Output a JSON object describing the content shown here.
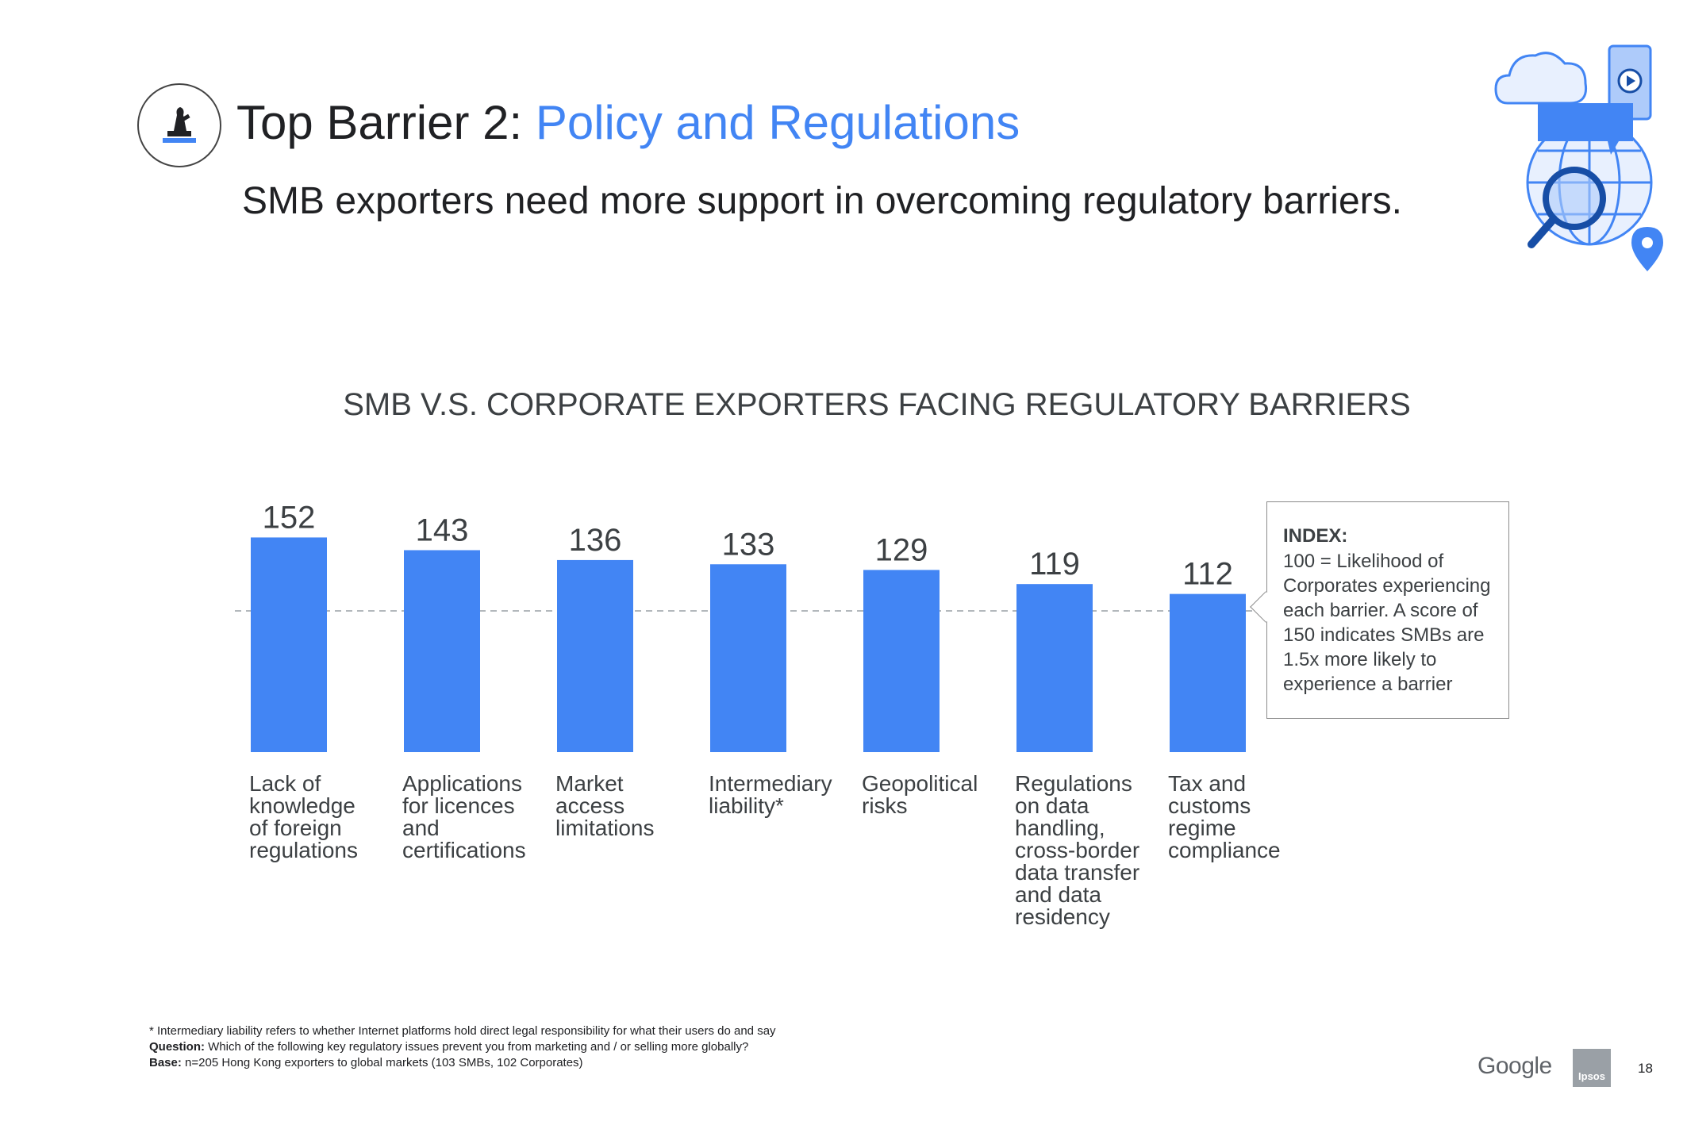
{
  "header": {
    "title_prefix": "Top Barrier 2: ",
    "title_accent": "Policy and Regulations",
    "subtitle": "SMB exporters need more support in overcoming regulatory barriers."
  },
  "colors": {
    "bar": "#4285f4",
    "accent": "#4285f4",
    "text": "#3c4043"
  },
  "chart_data": {
    "type": "bar",
    "title": "SMB V.S. CORPORATE EXPORTERS FACING REGULATORY BARRIERS",
    "categories": [
      "Lack of knowledge of foreign regulations",
      "Applications for licences and certifications",
      "Market access limitations",
      "Intermediary liability*",
      "Geopolitical risks",
      "Regulations on data handling, cross-border data transfer and data residency",
      "Tax and customs regime compliance"
    ],
    "category_lines": [
      [
        "Lack of",
        "knowledge",
        "of foreign",
        "regulations"
      ],
      [
        "Applications",
        "for licences",
        "and",
        "certifications"
      ],
      [
        "Market",
        "access",
        "limitations"
      ],
      [
        "Intermediary",
        "liability*"
      ],
      [
        "Geopolitical",
        "risks"
      ],
      [
        "Regulations",
        "on data",
        "handling,",
        "cross-border",
        "data transfer",
        "and data",
        "residency"
      ],
      [
        "Tax and",
        "customs",
        "regime",
        "compliance"
      ]
    ],
    "values": [
      152,
      143,
      136,
      133,
      129,
      119,
      112
    ],
    "data_labels": [
      "152",
      "143",
      "136",
      "133",
      "129",
      "119",
      "112"
    ],
    "reference_line": 100,
    "ylim": [
      0,
      152
    ],
    "xlabel": "",
    "ylabel": "",
    "grid": false,
    "legend": "none"
  },
  "index_note": {
    "heading": "INDEX:",
    "text": "100 = Likelihood of Corporates experiencing each barrier. A score of 150 indicates SMBs are 1.5x more likely to experience a barrier"
  },
  "footer": {
    "note1": "* Intermediary liability refers to whether Internet platforms hold direct legal responsibility for what their users do and say",
    "question_label": "Question:",
    "question_text": " Which of the following key regulatory issues prevent you from marketing and / or selling more globally?",
    "base_label": "Base:",
    "base_text": " n=205 Hong Kong exporters to global markets (103 SMBs, 102 Corporates)",
    "google_logo": "Google",
    "ipsos_logo": "Ipsos",
    "page_number": "18"
  }
}
